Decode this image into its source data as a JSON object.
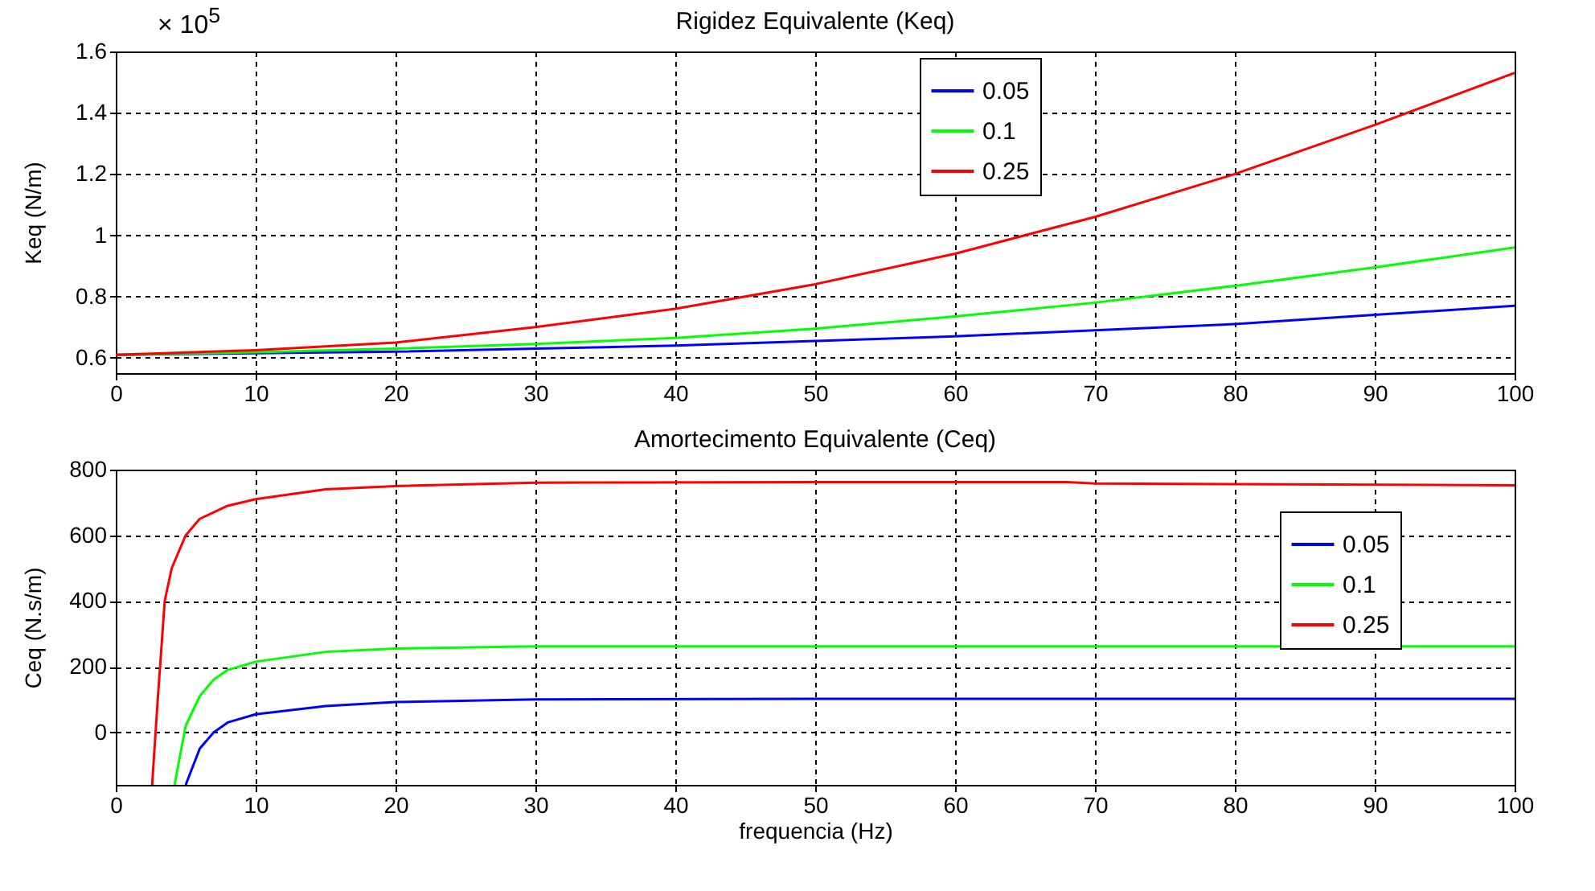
{
  "chart_data": [
    {
      "type": "line",
      "title": "Rigidez Equivalente (Keq)",
      "ylabel": "Keq (N/m)",
      "annotations": [
        "× 10$^{5}$"
      ],
      "xlim": [
        0,
        100
      ],
      "xticks": [
        0,
        10,
        20,
        30,
        40,
        50,
        60,
        70,
        80,
        90,
        100
      ],
      "ylim": [
        0.55,
        1.6
      ],
      "yticks": [
        0.6,
        0.8,
        {
          "value": 1,
          "label": "1"
        },
        1.2,
        1.4,
        1.6
      ],
      "grid": true,
      "legend": "top right",
      "line_style": "solid",
      "x": [
        0,
        10,
        20,
        30,
        40,
        50,
        60,
        70,
        80,
        90,
        100
      ],
      "series": [
        {
          "name": "0.05",
          "color": "#0000ff",
          "values": [
            0.61,
            0.615,
            0.62,
            0.63,
            0.64,
            0.655,
            0.67,
            0.69,
            0.71,
            0.74,
            0.77
          ]
        },
        {
          "name": "0.1",
          "color": "#00ff00",
          "values": [
            0.61,
            0.618,
            0.63,
            0.645,
            0.665,
            0.695,
            0.735,
            0.78,
            0.835,
            0.895,
            0.96
          ]
        },
        {
          "name": "0.25",
          "color": "#ff0000",
          "values": [
            0.61,
            0.625,
            0.65,
            0.7,
            0.76,
            0.84,
            0.94,
            1.06,
            1.2,
            1.36,
            1.53
          ]
        }
      ]
    },
    {
      "type": "line",
      "title": "Amortecimento Equivalente (Ceq)",
      "xlabel": "frequencia (Hz)",
      "ylabel": "Ceq (N.s/m)",
      "xlim": [
        0,
        100
      ],
      "xticks": [
        0,
        10,
        20,
        30,
        40,
        50,
        60,
        70,
        80,
        90,
        100
      ],
      "ylim": [
        -160,
        800
      ],
      "yticks": [
        0,
        200,
        400,
        600,
        800
      ],
      "grid": true,
      "legend": "top right",
      "line_style": "solid",
      "series": [
        {
          "name": "0.05",
          "color": "#0000ff",
          "x": [
            5,
            6,
            7,
            8,
            10,
            15,
            20,
            30,
            50,
            100
          ],
          "values": [
            -160,
            -50,
            0,
            30,
            55,
            80,
            92,
            100,
            102,
            102
          ]
        },
        {
          "name": "0.1",
          "color": "#00ff00",
          "x": [
            4.2,
            5,
            6,
            7,
            8,
            10,
            15,
            20,
            30,
            50,
            100
          ],
          "values": [
            -160,
            20,
            110,
            160,
            190,
            215,
            245,
            255,
            262,
            262,
            262
          ]
        },
        {
          "name": "0.25",
          "color": "#ff0000",
          "x": [
            2.6,
            3,
            3.5,
            4,
            5,
            6,
            8,
            10,
            15,
            20,
            30,
            50,
            68,
            70,
            100
          ],
          "values": [
            -160,
            100,
            400,
            500,
            600,
            650,
            690,
            710,
            740,
            750,
            760,
            762,
            762,
            758,
            752
          ]
        }
      ]
    }
  ]
}
